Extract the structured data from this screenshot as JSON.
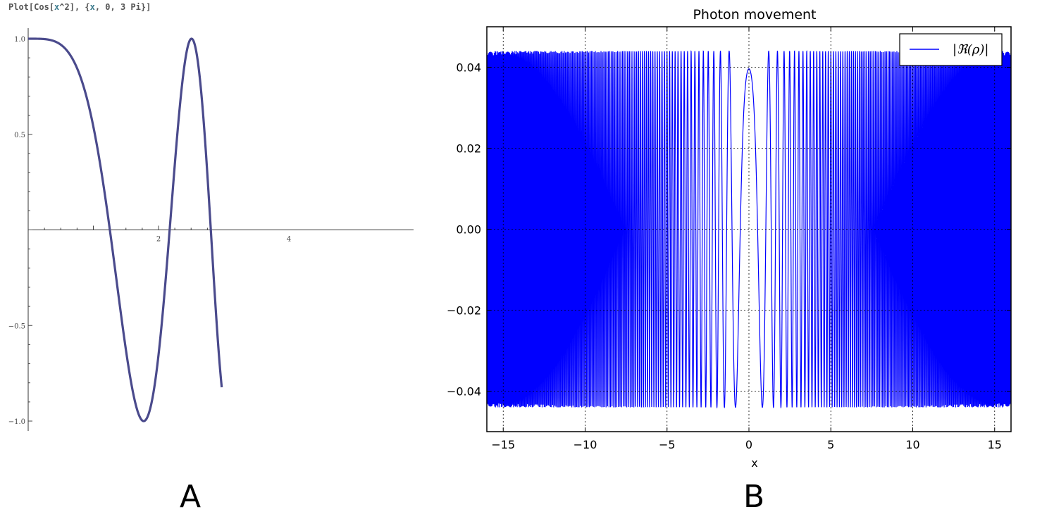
{
  "panelA": {
    "command": {
      "prefix": "Plot[Cos[",
      "var1": "x",
      "mid1": "^2], {",
      "var2": "x",
      "rest": ", 0, 3 Pi}]"
    },
    "label": "A"
  },
  "panelB": {
    "label": "B"
  },
  "chart_data": [
    {
      "id": "A",
      "type": "line",
      "title": "",
      "function": "cos(x^2)",
      "x_range": [
        0,
        9.42
      ],
      "xlim": [
        0,
        2.97
      ],
      "ylim": [
        -1.0,
        1.0
      ],
      "x_ticks": [
        {
          "value": 2,
          "label": "2"
        },
        {
          "value": 4,
          "label": "4"
        }
      ],
      "y_ticks": [
        {
          "value": 1.0,
          "label": "1.0"
        },
        {
          "value": 0.5,
          "label": "0.5"
        },
        {
          "value": -0.5,
          "label": "−0.5"
        },
        {
          "value": -1.0,
          "label": "−1.0"
        }
      ],
      "color": "#4a4a8c",
      "grid": false
    },
    {
      "id": "B",
      "type": "line",
      "title": "Photon movement",
      "xlabel": "x",
      "ylabel": "",
      "xlim": [
        -16,
        16
      ],
      "ylim": [
        -0.05,
        0.05
      ],
      "series": [
        {
          "name": "|ℜ(ρ)|",
          "amplitude": 0.044,
          "color": "#0000ff"
        }
      ],
      "x_ticks": [
        {
          "value": -15,
          "label": "−15"
        },
        {
          "value": -10,
          "label": "−10"
        },
        {
          "value": -5,
          "label": "−5"
        },
        {
          "value": 0,
          "label": "0"
        },
        {
          "value": 5,
          "label": "5"
        },
        {
          "value": 10,
          "label": "10"
        },
        {
          "value": 15,
          "label": "15"
        }
      ],
      "y_ticks": [
        {
          "value": 0.04,
          "label": "0.04"
        },
        {
          "value": 0.02,
          "label": "0.02"
        },
        {
          "value": 0.0,
          "label": "0.00"
        },
        {
          "value": -0.02,
          "label": "−0.02"
        },
        {
          "value": -0.04,
          "label": "−0.04"
        }
      ],
      "grid": true,
      "legend": "top-right"
    }
  ]
}
